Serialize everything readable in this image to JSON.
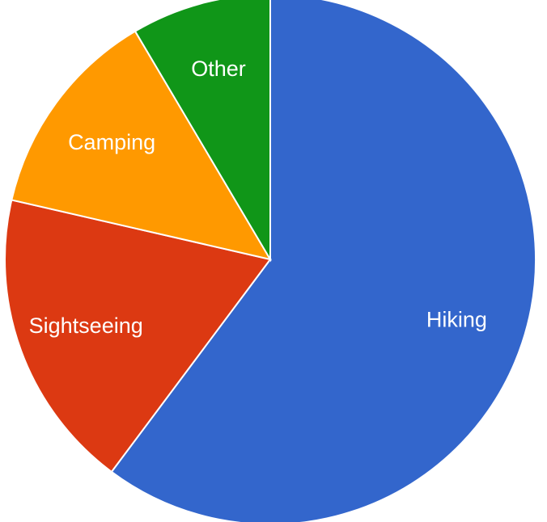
{
  "chart_data": {
    "type": "pie",
    "title": "",
    "legend": "none",
    "start_angle_deg": 0,
    "direction": "clockwise",
    "slices": [
      {
        "label": "Hiking",
        "value": 60.2,
        "color": "#3366cc"
      },
      {
        "label": "Sightseeing",
        "value": 18.4,
        "color": "#dc3912"
      },
      {
        "label": "Camping",
        "value": 12.9,
        "color": "#ff9900"
      },
      {
        "label": "Other",
        "value": 8.5,
        "color": "#109618"
      }
    ]
  }
}
